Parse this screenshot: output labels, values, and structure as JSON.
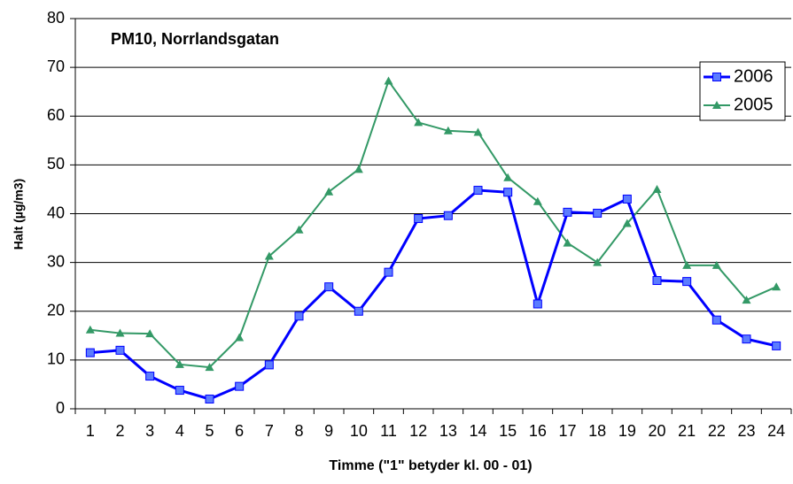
{
  "chart_data": {
    "type": "line",
    "title": "PM10, Norrlandsgatan",
    "x_label": "Timme (\"1\" betyder kl. 00 - 01)",
    "y_label": "Halt (µg/m3)",
    "categories": [
      "1",
      "2",
      "3",
      "4",
      "5",
      "6",
      "7",
      "8",
      "9",
      "10",
      "11",
      "12",
      "13",
      "14",
      "15",
      "16",
      "17",
      "18",
      "19",
      "20",
      "21",
      "22",
      "23",
      "24"
    ],
    "series": [
      {
        "name": "2006",
        "color": "#0000ff",
        "marker": "square",
        "values": [
          11.5,
          12,
          6.7,
          3.8,
          2,
          4.6,
          9,
          19,
          25,
          20,
          28,
          39,
          39.6,
          44.8,
          44.4,
          21.5,
          40.3,
          40.1,
          43,
          26.3,
          26.1,
          18.2,
          14.3,
          12.9
        ]
      },
      {
        "name": "2005",
        "color": "#339966",
        "marker": "triangle",
        "values": [
          16.2,
          15.5,
          15.4,
          9.1,
          8.5,
          14.6,
          31.3,
          36.7,
          44.5,
          49.1,
          67.2,
          58.7,
          57,
          56.7,
          47.4,
          42.5,
          34,
          30,
          38,
          45,
          29.4,
          29.4,
          22.3,
          25
        ]
      }
    ],
    "ylim": [
      0,
      80
    ],
    "yticks": [
      0,
      10,
      20,
      30,
      40,
      50,
      60,
      70,
      80
    ],
    "grid": true,
    "legend": "upper right"
  }
}
